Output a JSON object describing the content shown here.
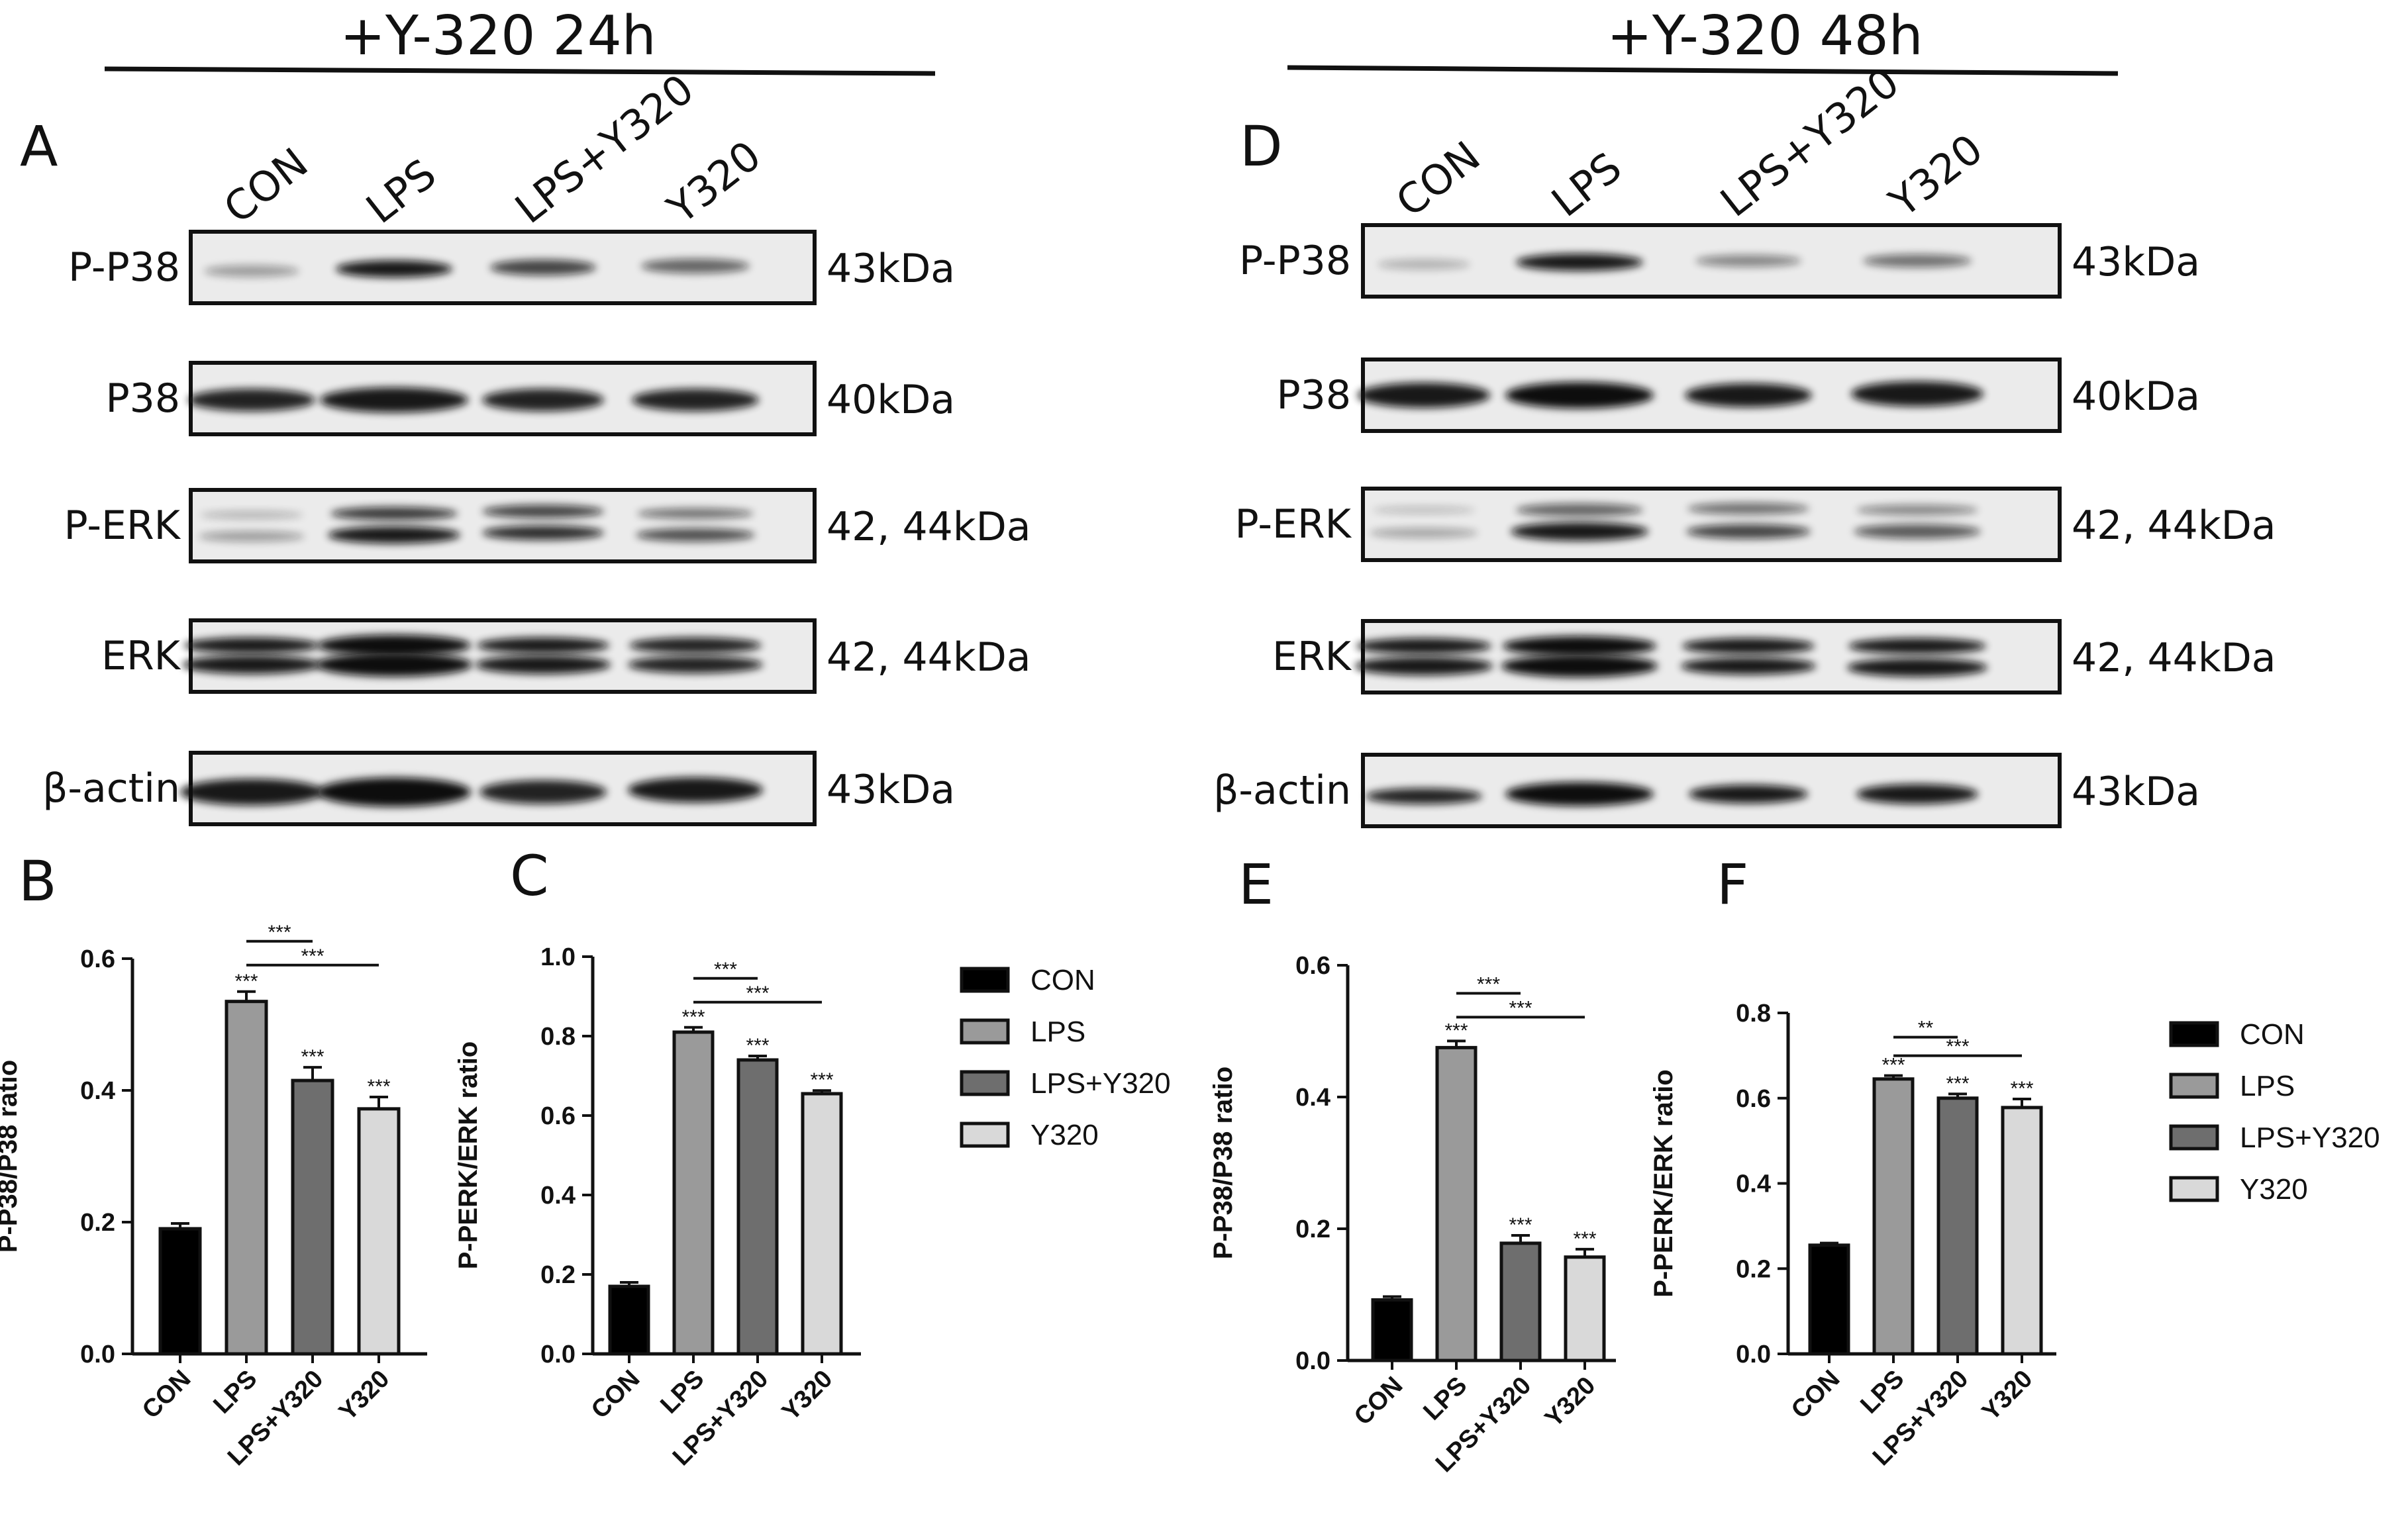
{
  "headers": {
    "left": "+Y-320 24h",
    "right": "+Y-320 48h"
  },
  "panels": {
    "A": "A",
    "B": "B",
    "C": "C",
    "D": "D",
    "E": "E",
    "F": "F"
  },
  "blots": {
    "lanes": [
      "CON",
      "LPS",
      "LPS+Y320",
      "Y320"
    ],
    "proteins": [
      "P-P38",
      "P38",
      "P-ERK",
      "ERK",
      "β-actin"
    ],
    "sizes": [
      "43kDa",
      "40kDa",
      "42, 44kDa",
      "42, 44kDa",
      "43kDa"
    ]
  },
  "legend": {
    "items": [
      {
        "label": "CON",
        "color": "#000000"
      },
      {
        "label": "LPS",
        "color": "#9a9a9a"
      },
      {
        "label": "LPS+Y320",
        "color": "#6e6e6e"
      },
      {
        "label": "Y320",
        "color": "#d9d9d9"
      }
    ]
  },
  "chart_data": [
    {
      "panel": "B",
      "type": "bar",
      "categories": [
        "CON",
        "LPS",
        "LPS+Y320",
        "Y320"
      ],
      "values": [
        0.19,
        0.535,
        0.415,
        0.372
      ],
      "errors": [
        0.008,
        0.015,
        0.02,
        0.018
      ],
      "colors": [
        "#000000",
        "#9a9a9a",
        "#6e6e6e",
        "#d9d9d9"
      ],
      "ylabel": "P-P38/P38 ratio",
      "ylim": [
        0,
        0.6
      ],
      "yticks": [
        "0.0",
        "0.2",
        "0.4",
        "0.6"
      ],
      "bar_annotations": [
        "",
        "***",
        "***",
        "***"
      ],
      "brackets": [
        {
          "from": "LPS",
          "to": "LPS+Y320",
          "label": "***"
        },
        {
          "from": "LPS",
          "to": "Y320",
          "label": "***"
        }
      ]
    },
    {
      "panel": "C",
      "type": "bar",
      "categories": [
        "CON",
        "LPS",
        "LPS+Y320",
        "Y320"
      ],
      "values": [
        0.17,
        0.81,
        0.74,
        0.655
      ],
      "errors": [
        0.01,
        0.012,
        0.01,
        0.008
      ],
      "colors": [
        "#000000",
        "#9a9a9a",
        "#6e6e6e",
        "#d9d9d9"
      ],
      "ylabel": "P-PERK/ERK ratio",
      "ylim": [
        0,
        1.0
      ],
      "yticks": [
        "0.0",
        "0.2",
        "0.4",
        "0.6",
        "0.8",
        "1.0"
      ],
      "bar_annotations": [
        "",
        "***",
        "***",
        "***"
      ],
      "brackets": [
        {
          "from": "LPS",
          "to": "LPS+Y320",
          "label": "***"
        },
        {
          "from": "LPS",
          "to": "Y320",
          "label": "***"
        }
      ]
    },
    {
      "panel": "E",
      "type": "bar",
      "categories": [
        "CON",
        "LPS",
        "LPS+Y320",
        "Y320"
      ],
      "values": [
        0.092,
        0.475,
        0.178,
        0.157
      ],
      "errors": [
        0.005,
        0.01,
        0.012,
        0.012
      ],
      "colors": [
        "#000000",
        "#9a9a9a",
        "#6e6e6e",
        "#d9d9d9"
      ],
      "ylabel": "P-P38/P38 ratio",
      "ylim": [
        0,
        0.6
      ],
      "yticks": [
        "0.0",
        "0.2",
        "0.4",
        "0.6"
      ],
      "bar_annotations": [
        "",
        "***",
        "***",
        "***"
      ],
      "brackets": [
        {
          "from": "LPS",
          "to": "LPS+Y320",
          "label": "***"
        },
        {
          "from": "LPS",
          "to": "Y320",
          "label": "***"
        }
      ]
    },
    {
      "panel": "F",
      "type": "bar",
      "categories": [
        "CON",
        "LPS",
        "LPS+Y320",
        "Y320"
      ],
      "values": [
        0.255,
        0.645,
        0.6,
        0.578
      ],
      "errors": [
        0.005,
        0.008,
        0.01,
        0.02
      ],
      "colors": [
        "#000000",
        "#9a9a9a",
        "#6e6e6e",
        "#d9d9d9"
      ],
      "ylabel": "P-PERK/ERK ratio",
      "ylim": [
        0,
        0.8
      ],
      "yticks": [
        "0.0",
        "0.2",
        "0.4",
        "0.6",
        "0.8"
      ],
      "bar_annotations": [
        "",
        "***",
        "***",
        "***"
      ],
      "brackets": [
        {
          "from": "LPS",
          "to": "LPS+Y320",
          "label": "**"
        },
        {
          "from": "LPS",
          "to": "Y320",
          "label": "***"
        }
      ]
    }
  ]
}
